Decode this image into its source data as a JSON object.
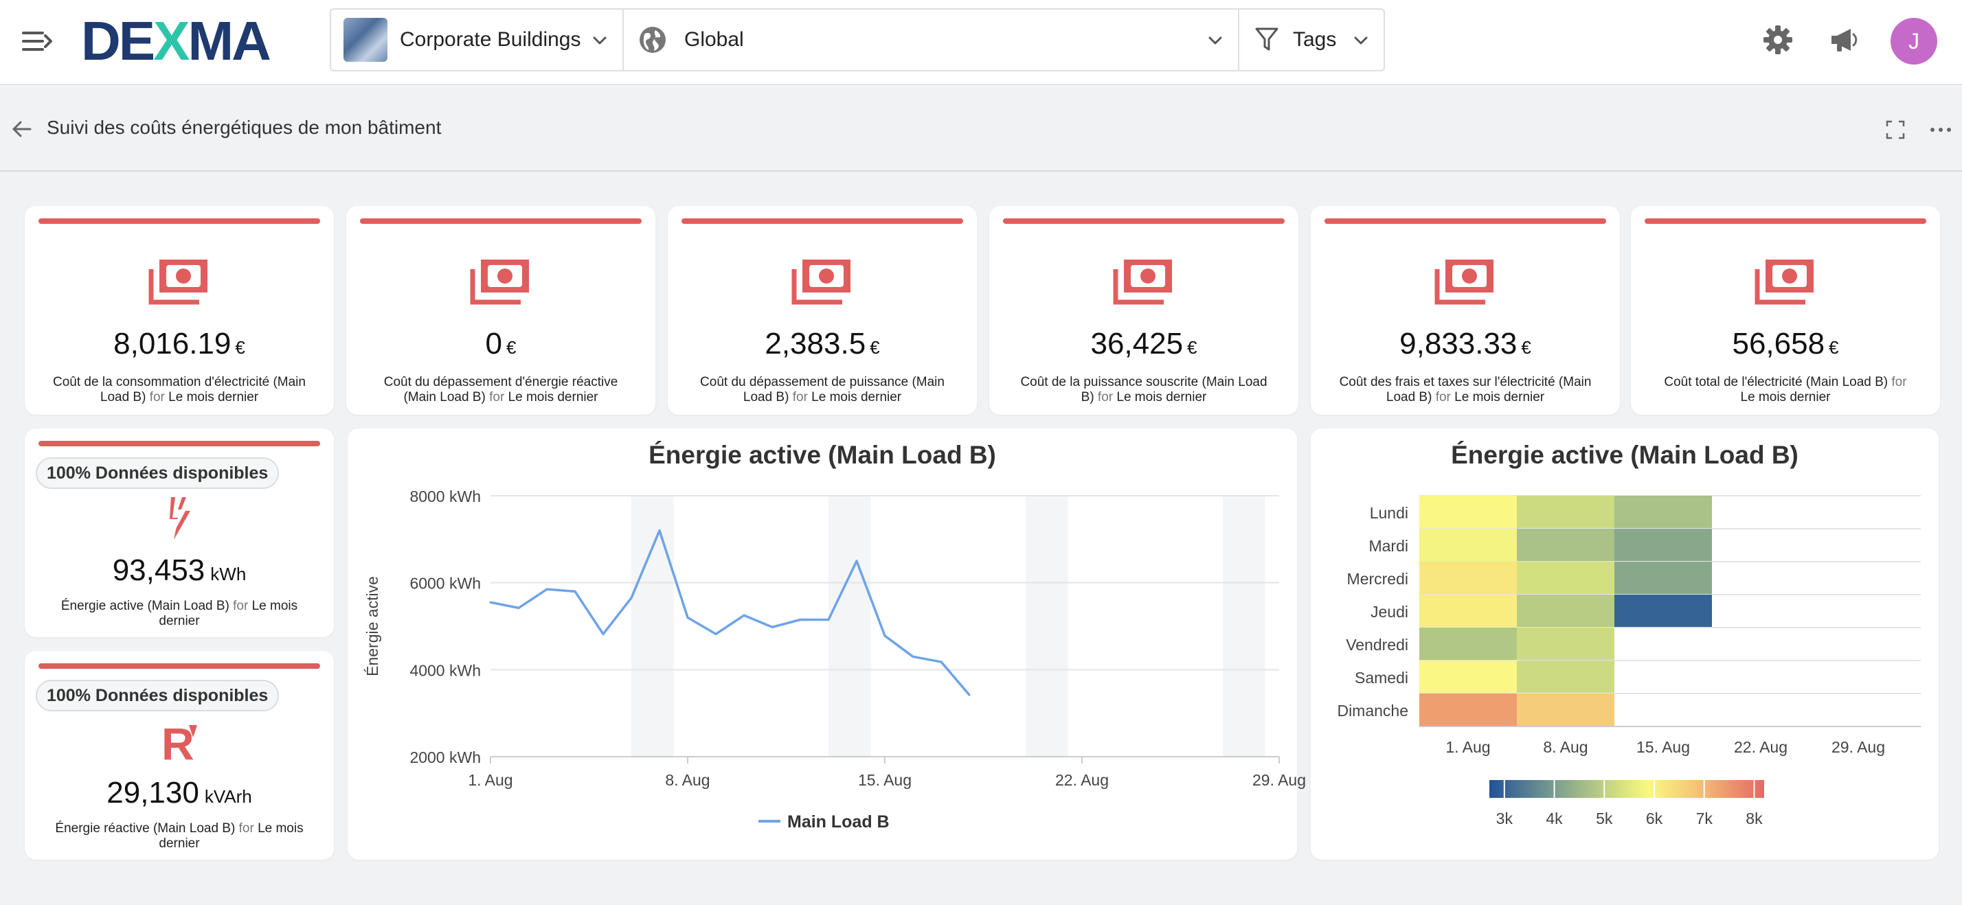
{
  "header": {
    "logo_text": "DEXMA",
    "building_selector": "Corporate Buildings",
    "scope_selector": "Global",
    "tags_selector": "Tags",
    "avatar_initial": "J"
  },
  "subheader": {
    "title": "Suivi des coûts énergétiques de mon bâtiment"
  },
  "kpis": [
    {
      "value": "8,016.19",
      "unit": "€",
      "label": "Coût de la consommation d'électricité (Main Load B)",
      "for": "for",
      "period": "Le mois dernier"
    },
    {
      "value": "0",
      "unit": "€",
      "label": "Coût du dépassement d'énergie réactive (Main Load B)",
      "for": "for",
      "period": "Le mois dernier"
    },
    {
      "value": "2,383.5",
      "unit": "€",
      "label": "Coût du dépassement de puissance (Main Load B)",
      "for": "for",
      "period": "Le mois dernier"
    },
    {
      "value": "36,425",
      "unit": "€",
      "label": "Coût de la puissance souscrite (Main Load B)",
      "for": "for",
      "period": "Le mois dernier"
    },
    {
      "value": "9,833.33",
      "unit": "€",
      "label": "Coût des frais et taxes sur l'électricité (Main Load B)",
      "for": "for",
      "period": "Le mois dernier"
    },
    {
      "value": "56,658",
      "unit": "€",
      "label": "Coût total de l'électricité (Main Load B)",
      "for": "for",
      "period": "Le mois dernier"
    }
  ],
  "side_cards": [
    {
      "badge": "100% Données disponibles",
      "value": "93,453",
      "unit": "kWh",
      "label": "Énergie active (Main Load B)",
      "for": "for",
      "period": "Le mois dernier",
      "icon": "lightning-icon"
    },
    {
      "badge": "100% Données disponibles",
      "value": "29,130",
      "unit": "kVArh",
      "label": "Énergie réactive (Main Load B)",
      "for": "for",
      "period": "Le mois dernier",
      "icon": "reactive-energy-icon"
    }
  ],
  "colors": {
    "accent": "#e05d5d",
    "line": "#6ea4e6",
    "avatar": "#c56ac9"
  },
  "chart_data": [
    {
      "type": "line",
      "title": "Énergie active (Main Load B)",
      "ylabel": "Énergie active",
      "ylim": [
        2000,
        8000
      ],
      "yticks": [
        "8000 kWh",
        "6000 kWh",
        "4000 kWh",
        "2000 kWh"
      ],
      "xticks": [
        "1. Aug",
        "8. Aug",
        "15. Aug",
        "22. Aug",
        "29. Aug"
      ],
      "x": [
        1,
        2,
        3,
        4,
        5,
        6,
        7,
        8,
        9,
        10,
        11,
        12,
        13,
        14,
        15,
        16,
        17,
        18
      ],
      "series": [
        {
          "name": "Main Load B",
          "values": [
            5550,
            5420,
            5850,
            5800,
            4820,
            5650,
            7200,
            5200,
            4820,
            5250,
            4980,
            5150,
            5150,
            6500,
            4780,
            4300,
            4180,
            3420
          ]
        }
      ],
      "legend": "bottom"
    },
    {
      "type": "heatmap",
      "title": "Énergie active (Main Load B)",
      "rows": [
        "Lundi",
        "Mardi",
        "Mercredi",
        "Jeudi",
        "Vendredi",
        "Samedi",
        "Dimanche"
      ],
      "xticks": [
        "1. Aug",
        "8. Aug",
        "15. Aug",
        "22. Aug",
        "29. Aug"
      ],
      "columns": [
        "1. Aug",
        "8. Aug",
        "15. Aug"
      ],
      "values": [
        [
          5900,
          5200,
          4700
        ],
        [
          5800,
          4700,
          4200
        ],
        [
          6200,
          5300,
          4200
        ],
        [
          6100,
          4900,
          3000
        ],
        [
          4800,
          5200,
          null
        ],
        [
          5900,
          5200,
          null
        ],
        [
          7400,
          6700,
          null
        ]
      ],
      "color_scale_ticks": [
        "3k",
        "4k",
        "5k",
        "6k",
        "7k",
        "8k"
      ],
      "color_range": [
        2700,
        8200
      ]
    }
  ]
}
